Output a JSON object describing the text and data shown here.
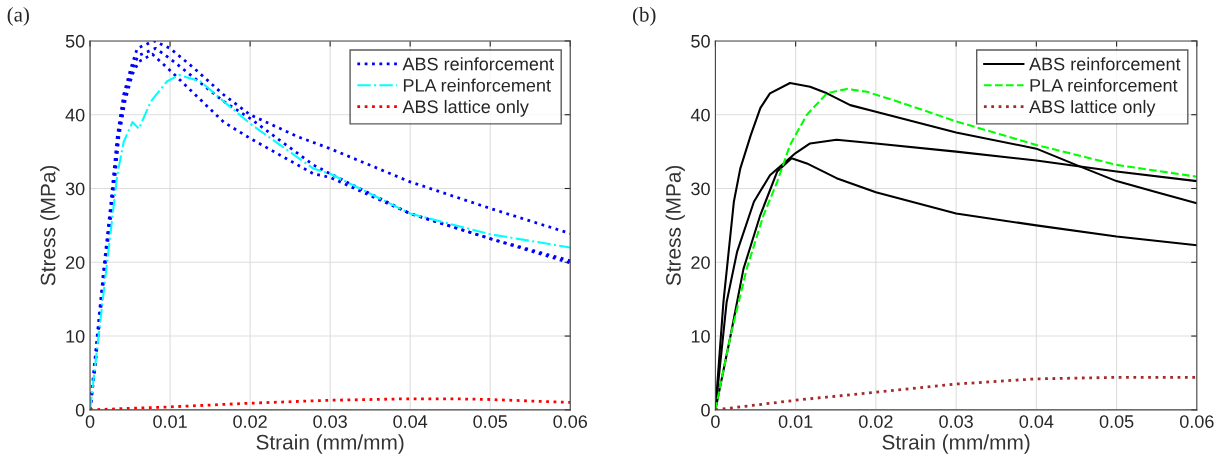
{
  "chart_data": [
    {
      "type": "line",
      "title": "(a)",
      "xlabel": "Strain (mm/mm)",
      "ylabel": "Stress (MPa)",
      "xlim": [
        0,
        0.06
      ],
      "ylim": [
        0,
        50
      ],
      "xticks": [
        0,
        0.01,
        0.02,
        0.03,
        0.04,
        0.05,
        0.06
      ],
      "yticks": [
        0,
        10,
        20,
        30,
        40,
        50
      ],
      "grid": true,
      "legend": "top right",
      "series": [
        {
          "name": "ABS reinforcement",
          "color": "#0000ff",
          "line_style": "dotted",
          "x": [
            0,
            0.0005,
            0.0017,
            0.0026,
            0.0034,
            0.0042,
            0.0051,
            0.0059,
            0.008,
            0.01,
            0.013,
            0.0167,
            0.02,
            0.026,
            0.03,
            0.04,
            0.05,
            0.06
          ],
          "values": [
            0,
            5.6,
            19,
            28,
            37,
            42.7,
            46.3,
            49,
            50,
            49,
            46.3,
            42.7,
            40,
            37,
            35.4,
            30.9,
            27.3,
            23.9
          ]
        },
        {
          "color": "#0000ff",
          "line_style": "dotted",
          "x": [
            0,
            0.0006,
            0.0018,
            0.0027,
            0.0035,
            0.0043,
            0.0052,
            0.006,
            0.0082,
            0.01,
            0.0167,
            0.02,
            0.0279,
            0.03,
            0.04,
            0.05,
            0.06
          ],
          "values": [
            0,
            5.6,
            19,
            28,
            37,
            42.5,
            46,
            48,
            49,
            47.6,
            41.8,
            39.5,
            33.2,
            32,
            26.6,
            23.2,
            20.2
          ]
        },
        {
          "color": "#0000ff",
          "line_style": "dotted",
          "x": [
            0,
            0.0006,
            0.0018,
            0.0028,
            0.0036,
            0.0044,
            0.0053,
            0.0061,
            0.0078,
            0.01,
            0.0167,
            0.02,
            0.0279,
            0.03,
            0.04,
            0.05,
            0.06
          ],
          "values": [
            0,
            5.6,
            19,
            28,
            37,
            42,
            45.5,
            47.2,
            48.2,
            46,
            39,
            36.8,
            32,
            31.5,
            26.6,
            23.2,
            19.9
          ]
        },
        {
          "name": "PLA reinforcement",
          "color": "#00ffff",
          "line_style": "dashdot",
          "x": [
            0,
            0.0034,
            0.0042,
            0.0053,
            0.0061,
            0.0076,
            0.0096,
            0.0111,
            0.0138,
            0.0167,
            0.02,
            0.0279,
            0.03,
            0.04,
            0.05,
            0.06
          ],
          "values": [
            0,
            31.8,
            36.3,
            39,
            38.1,
            41.8,
            44.5,
            45.4,
            44.5,
            41.8,
            38.8,
            32.7,
            32,
            26.6,
            23.8,
            22
          ]
        },
        {
          "name": "ABS lattice only",
          "color": "#ff0000",
          "line_style": "dotted",
          "x": [
            0,
            0.01,
            0.02,
            0.03,
            0.04,
            0.045,
            0.05,
            0.06
          ],
          "values": [
            0,
            0.4,
            0.9,
            1.3,
            1.5,
            1.5,
            1.4,
            1.0
          ]
        }
      ]
    },
    {
      "type": "line",
      "title": "(b)",
      "xlabel": "Strain (mm/mm)",
      "ylabel": "Stress (MPa)",
      "xlim": [
        0,
        0.06
      ],
      "ylim": [
        0,
        50
      ],
      "xticks": [
        0,
        0.01,
        0.02,
        0.03,
        0.04,
        0.05,
        0.06
      ],
      "yticks": [
        0,
        10,
        20,
        30,
        40,
        50
      ],
      "grid": true,
      "legend": "top right",
      "series": [
        {
          "name": "ABS reinforcement",
          "color": "#000000",
          "line_style": "solid",
          "x": [
            0,
            0.001,
            0.0023,
            0.0031,
            0.0044,
            0.0056,
            0.0068,
            0.0093,
            0.0118,
            0.0139,
            0.0168,
            0.02,
            0.03,
            0.04,
            0.0454,
            0.05,
            0.055,
            0.06
          ],
          "values": [
            0,
            14.6,
            28.2,
            32.7,
            37.2,
            40.9,
            42.9,
            44.3,
            43.8,
            42.9,
            41.3,
            40.4,
            37.6,
            35.4,
            33,
            31,
            29.5,
            28
          ]
        },
        {
          "color": "#000000",
          "line_style": "solid",
          "x": [
            0,
            0.0014,
            0.0027,
            0.0048,
            0.0068,
            0.01,
            0.0118,
            0.0151,
            0.02,
            0.03,
            0.04,
            0.05,
            0.06
          ],
          "values": [
            0,
            14.6,
            21.4,
            28.2,
            31.8,
            34.8,
            36.1,
            36.6,
            36.1,
            35,
            33.8,
            32.3,
            31
          ]
        },
        {
          "color": "#000000",
          "line_style": "solid",
          "x": [
            0,
            0.0019,
            0.0035,
            0.0056,
            0.0077,
            0.0095,
            0.0114,
            0.0151,
            0.02,
            0.03,
            0.04,
            0.05,
            0.06
          ],
          "values": [
            0,
            10.1,
            19.1,
            26.4,
            32.3,
            34.1,
            33.4,
            31.4,
            29.5,
            26.6,
            25,
            23.5,
            22.3
          ]
        },
        {
          "name": "PLA reinforcement",
          "color": "#00ff00",
          "line_style": "dashed",
          "x": [
            0,
            0.0019,
            0.0039,
            0.006,
            0.0077,
            0.0093,
            0.0114,
            0.0139,
            0.0164,
            0.0189,
            0.0227,
            0.03,
            0.04,
            0.05,
            0.06
          ],
          "values": [
            0,
            10.1,
            19.1,
            26.4,
            30.9,
            35.9,
            40,
            42.9,
            43.5,
            43.1,
            41.8,
            39.1,
            35.9,
            33.2,
            31.6
          ]
        },
        {
          "name": "ABS lattice only",
          "color": "#a52a2a",
          "line_style": "dotted",
          "x": [
            0,
            0.01,
            0.02,
            0.03,
            0.04,
            0.05,
            0.06
          ],
          "values": [
            0,
            1.3,
            2.4,
            3.5,
            4.2,
            4.4,
            4.4
          ]
        }
      ]
    }
  ]
}
